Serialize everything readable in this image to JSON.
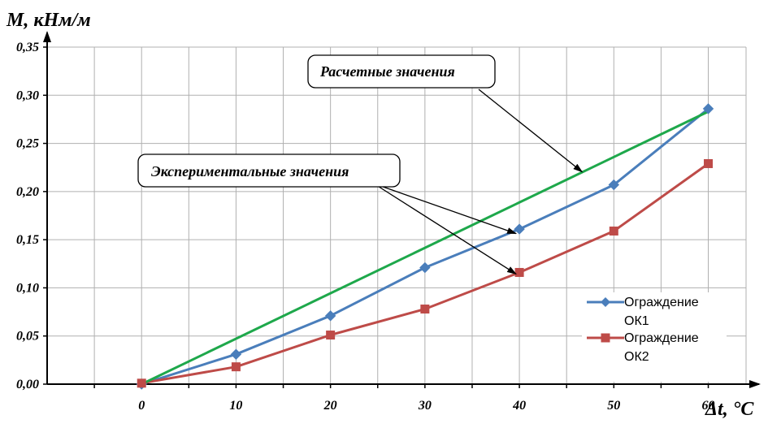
{
  "chart_data": {
    "type": "line",
    "ylabel": "M, кНм/м",
    "xlabel": "Δt, °C",
    "xlim": [
      -10,
      64
    ],
    "ylim": [
      0,
      0.35
    ],
    "x_ticks": [
      0,
      10,
      20,
      30,
      40,
      50,
      60
    ],
    "x_tick_labels": [
      "0",
      "10",
      "20",
      "30",
      "40",
      "50",
      "60"
    ],
    "y_ticks": [
      0,
      0.05,
      0.1,
      0.15,
      0.2,
      0.25,
      0.3,
      0.35
    ],
    "y_tick_labels": [
      "0,00",
      "0,05",
      "0,10",
      "0,15",
      "0,20",
      "0,25",
      "0,30",
      "0,35"
    ],
    "grid": true,
    "legend_position": "bottom-right",
    "series": [
      {
        "name": "Ограждение ОК1",
        "legend_lines": [
          "Ограждение",
          "ОК1"
        ],
        "color": "#4a7ebb",
        "marker": "diamond",
        "x": [
          0,
          10,
          20,
          30,
          40,
          50,
          60
        ],
        "y": [
          0.0,
          0.031,
          0.071,
          0.121,
          0.161,
          0.207,
          0.286
        ]
      },
      {
        "name": "Ограждение ОК2",
        "legend_lines": [
          "Ограждение",
          "ОК2"
        ],
        "color": "#be4b48",
        "marker": "square",
        "x": [
          0,
          10,
          20,
          30,
          40,
          50,
          60
        ],
        "y": [
          0.001,
          0.018,
          0.051,
          0.078,
          0.116,
          0.159,
          0.229
        ]
      },
      {
        "color": "#1ea84b",
        "marker": "none",
        "x": [
          0,
          60
        ],
        "y": [
          0.0,
          0.283
        ]
      }
    ],
    "annotations": [
      {
        "text": "Расчетные значения",
        "arrow_targets": [
          [
            47,
            0.222
          ]
        ]
      },
      {
        "text": "Экспериментальные значения",
        "arrow_targets": [
          [
            40,
            0.158
          ],
          [
            40,
            0.116
          ]
        ]
      }
    ]
  }
}
